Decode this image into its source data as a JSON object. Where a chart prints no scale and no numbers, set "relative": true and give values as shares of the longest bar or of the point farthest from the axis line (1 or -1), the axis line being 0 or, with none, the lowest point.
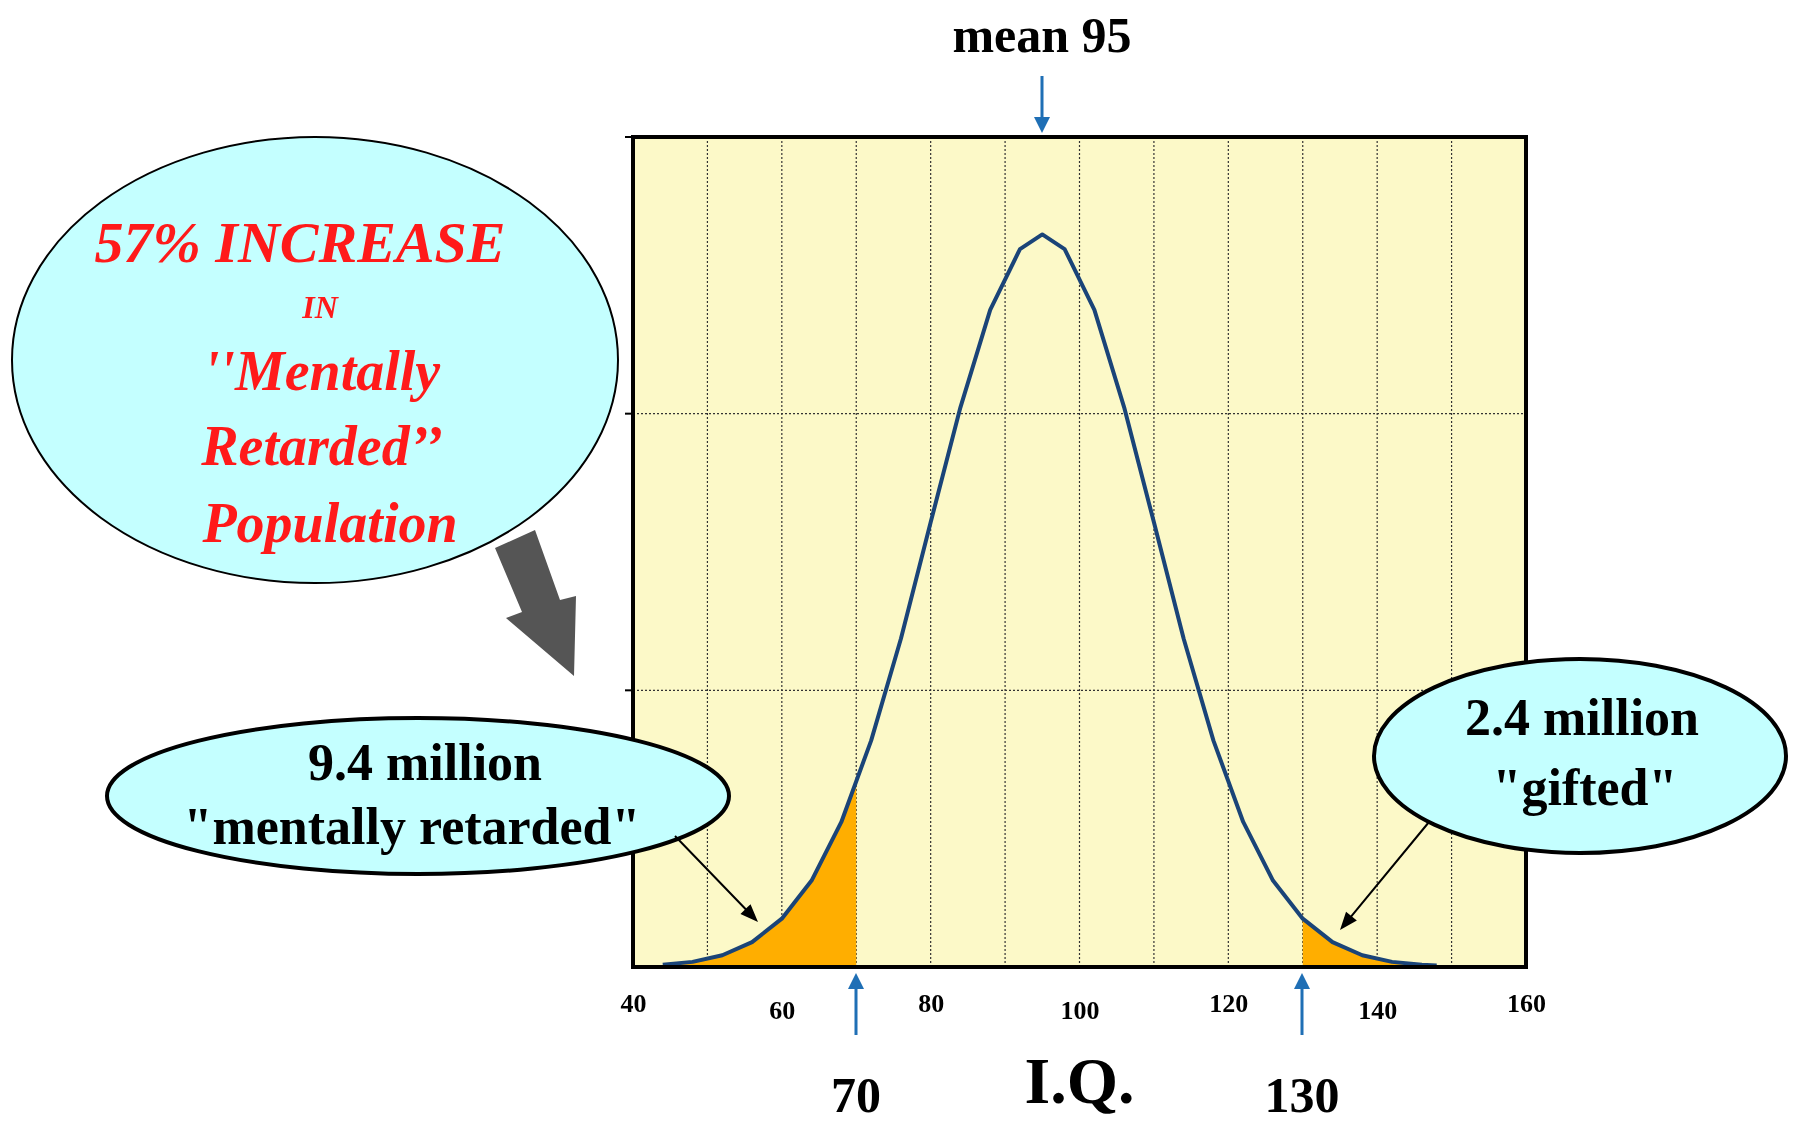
{
  "chart_data": {
    "type": "line",
    "relative": true,
    "xlabel": "I.Q.",
    "xlim": [
      40,
      160
    ],
    "xticks": [
      40,
      {
        "value": 50,
        "label": null
      },
      {
        "value": 60,
        "label": "60"
      },
      {
        "value": 70,
        "label": null
      },
      80,
      {
        "value": 90,
        "label": null
      },
      {
        "value": 100,
        "label": "100"
      },
      {
        "value": 110,
        "label": null
      },
      120,
      {
        "value": 130,
        "label": null
      },
      {
        "value": 140,
        "label": "140"
      },
      {
        "value": 150,
        "label": null
      },
      160
    ],
    "grid": true,
    "marker": "none",
    "line_style": "solid",
    "series": [
      {
        "color": "#1a4478",
        "x": [
          44,
          48,
          52,
          56,
          60,
          64,
          68,
          72,
          76,
          80,
          84,
          88,
          92,
          95,
          98,
          102,
          106,
          110,
          114,
          118,
          122,
          126,
          130,
          134,
          138,
          142,
          146,
          148
        ],
        "values": [
          0.003,
          0.007,
          0.016,
          0.034,
          0.066,
          0.118,
          0.198,
          0.309,
          0.448,
          0.607,
          0.764,
          0.897,
          0.98,
          1,
          0.98,
          0.897,
          0.764,
          0.607,
          0.448,
          0.309,
          0.198,
          0.118,
          0.066,
          0.034,
          0.016,
          0.007,
          0.003,
          0.002
        ]
      },
      {
        "type": "area",
        "color": "#ffae00",
        "x": [
          44,
          48,
          52,
          56,
          60,
          64,
          68,
          70
        ],
        "values": [
          0.003,
          0.007,
          0.016,
          0.034,
          0.066,
          0.118,
          0.198,
          0.249
        ]
      },
      {
        "type": "area",
        "color": "#ffae00",
        "x": [
          130,
          134,
          138,
          142,
          146,
          148
        ],
        "values": [
          0.066,
          0.034,
          0.016,
          0.007,
          0.003,
          0.002
        ]
      }
    ],
    "annotations": [
      "mean 95",
      "70",
      "130",
      "57% INCREASE",
      "IN",
      "''Mentally",
      "Retarded’’",
      "Population",
      "9.4 million",
      "\"mentally retarded\"",
      "2.4 million",
      "\"gifted\""
    ]
  }
}
